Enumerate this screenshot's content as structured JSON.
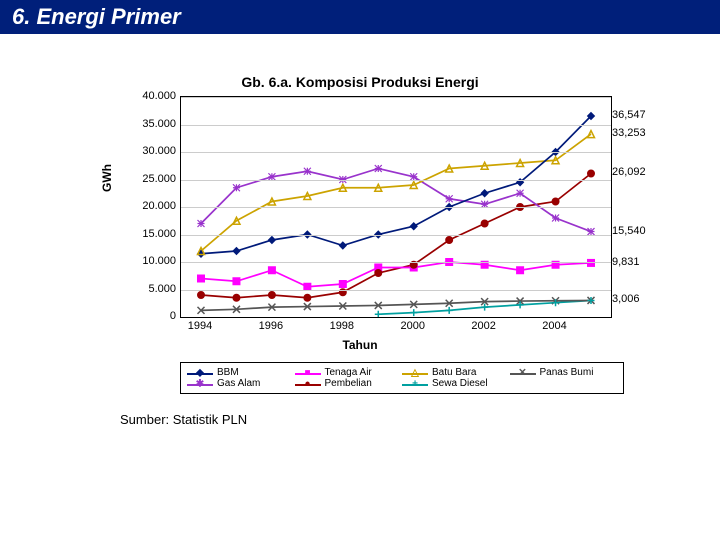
{
  "header": {
    "title": "6. Energi Primer"
  },
  "chart": {
    "type": "line",
    "title": "Gb. 6.a. Komposisi Produksi Energi",
    "ylabel": "GWh",
    "xlabel": "Tahun",
    "ylim": [
      0,
      40000
    ],
    "ytick_step": 5000,
    "yticks_label": [
      "0",
      "5.000",
      "10.000",
      "15.000",
      "20.000",
      "25.000",
      "30.000",
      "35.000",
      "40.000"
    ],
    "x_categories": [
      "1994",
      "1995",
      "1996",
      "1997",
      "1998",
      "1999",
      "2000",
      "2001",
      "2002",
      "2003",
      "2004",
      "2005"
    ],
    "x_shown": [
      "1994",
      "1996",
      "1998",
      "2000",
      "2002",
      "2004"
    ],
    "grid_color": "#cccccc",
    "plot_border": "#000000",
    "background_color": "#ffffff",
    "title_fontsize": 14,
    "label_fontsize": 12,
    "series": [
      {
        "name": "BBM",
        "label": "BBM",
        "color": "#001a7a",
        "marker": "diamond",
        "values": [
          11500,
          12000,
          14000,
          15000,
          13000,
          15000,
          16500,
          20000,
          22500,
          24500,
          30000,
          36547
        ],
        "end_label": "36,547"
      },
      {
        "name": "TenagaAir",
        "label": "Tenaga Air",
        "color": "#ff00ff",
        "marker": "square",
        "values": [
          7000,
          6500,
          8500,
          5500,
          6000,
          9000,
          9000,
          10000,
          9500,
          8500,
          9500,
          9831
        ],
        "end_label": "9,831"
      },
      {
        "name": "BatuBara",
        "label": "Batu Bara",
        "color": "#cca300",
        "marker": "triangle",
        "values": [
          12000,
          17500,
          21000,
          22000,
          23500,
          23500,
          24000,
          27000,
          27500,
          28000,
          28500,
          33253
        ],
        "end_label": "33,253"
      },
      {
        "name": "PanasBumi",
        "label": "Panas Bumi",
        "color": "#555555",
        "marker": "x",
        "values": [
          1200,
          1400,
          1800,
          1900,
          2000,
          2100,
          2300,
          2500,
          2800,
          2900,
          2950,
          3006
        ],
        "end_label": "3,006"
      },
      {
        "name": "GasAlam",
        "label": "Gas Alam",
        "color": "#9933cc",
        "marker": "star",
        "values": [
          17000,
          23500,
          25500,
          26500,
          25000,
          27000,
          25500,
          21500,
          20500,
          22500,
          18000,
          15540
        ],
        "end_label": "15,540"
      },
      {
        "name": "Pembelian",
        "label": "Pembelian",
        "color": "#990000",
        "marker": "circle",
        "values": [
          4000,
          3500,
          4000,
          3500,
          4500,
          8000,
          9500,
          14000,
          17000,
          20000,
          21000,
          26092
        ],
        "end_label": "26,092"
      },
      {
        "name": "SewaDiesel",
        "label": "Sewa Diesel",
        "color": "#00a0a0",
        "marker": "plus",
        "values": [
          null,
          null,
          null,
          null,
          null,
          500,
          800,
          1200,
          1800,
          2200,
          2600,
          3000
        ],
        "end_label": null
      }
    ],
    "legend_order": [
      "BBM",
      "TenagaAir",
      "BatuBara",
      "PanasBumi",
      "GasAlam",
      "Pembelian",
      "SewaDiesel"
    ]
  },
  "source": "Sumber: Statistik PLN"
}
